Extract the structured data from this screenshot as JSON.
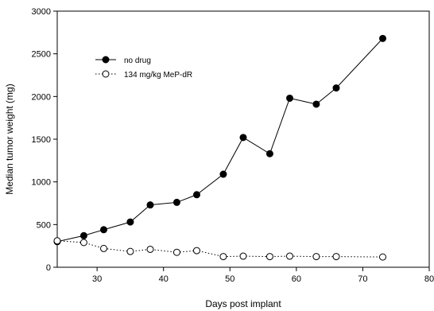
{
  "chart_data": {
    "type": "line",
    "xlabel": "Days post implant",
    "ylabel": "Median tumor weight (mg)",
    "xlim": [
      24,
      80
    ],
    "ylim": [
      0,
      3000
    ],
    "xticks": [
      30,
      40,
      50,
      60,
      70,
      80
    ],
    "yticks": [
      0,
      500,
      1000,
      1500,
      2000,
      2500,
      3000
    ],
    "grid": false,
    "legend_position": "top-left",
    "series": [
      {
        "name": "no drug",
        "marker": "filled-circle",
        "line_style": "solid",
        "color": "#000000",
        "x": [
          24,
          28,
          31,
          35,
          38,
          42,
          45,
          49,
          52,
          56,
          59,
          63,
          66,
          73
        ],
        "y": [
          300,
          370,
          440,
          530,
          730,
          760,
          850,
          1090,
          1520,
          1330,
          1980,
          1910,
          2100,
          2680
        ]
      },
      {
        "name": "134 mg/kg MeP-dR",
        "marker": "open-circle",
        "line_style": "dotted",
        "color": "#000000",
        "x": [
          24,
          28,
          31,
          35,
          38,
          42,
          45,
          49,
          52,
          56,
          59,
          63,
          66,
          73
        ],
        "y": [
          310,
          290,
          220,
          185,
          210,
          175,
          195,
          125,
          130,
          125,
          130,
          125,
          125,
          120
        ]
      }
    ]
  }
}
